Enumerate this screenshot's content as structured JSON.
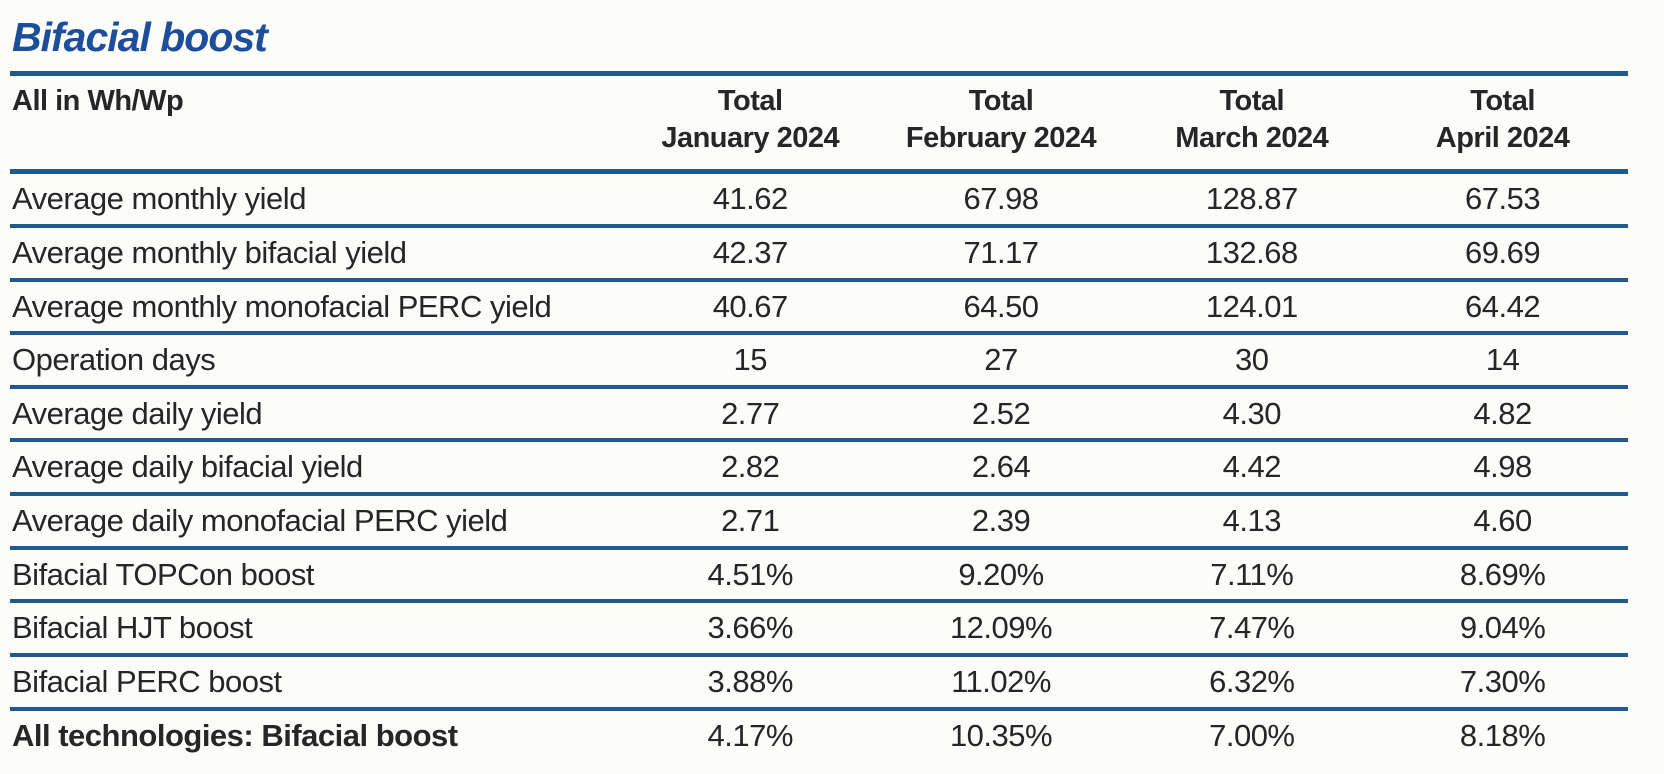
{
  "title": "Bifacial boost",
  "colors": {
    "title_blue": "#1d4e9c",
    "rule_blue": "#1e5b8c",
    "text": "#262626",
    "background": "#fcfcfa"
  },
  "chart_data": {
    "type": "table",
    "title": "Bifacial boost",
    "unit_note": "All in Wh/Wp",
    "column_headers": [
      {
        "top": "Total",
        "bottom": "January 2024"
      },
      {
        "top": "Total",
        "bottom": "February 2024"
      },
      {
        "top": "Total",
        "bottom": "March 2024"
      },
      {
        "top": "Total",
        "bottom": "April 2024"
      }
    ],
    "rows": [
      {
        "label": "Average monthly yield",
        "values": [
          "41.62",
          "67.98",
          "128.87",
          "67.53"
        ]
      },
      {
        "label": "Average monthly bifacial yield",
        "values": [
          "42.37",
          "71.17",
          "132.68",
          "69.69"
        ]
      },
      {
        "label": "Average monthly monofacial PERC yield",
        "values": [
          "40.67",
          "64.50",
          "124.01",
          "64.42"
        ]
      },
      {
        "label": "Operation days",
        "values": [
          "15",
          "27",
          "30",
          "14"
        ]
      },
      {
        "label": "Average daily yield",
        "values": [
          "2.77",
          "2.52",
          "4.30",
          "4.82"
        ]
      },
      {
        "label": "Average daily bifacial yield",
        "values": [
          "2.82",
          "2.64",
          "4.42",
          "4.98"
        ]
      },
      {
        "label": "Average daily monofacial PERC yield",
        "values": [
          "2.71",
          "2.39",
          "4.13",
          "4.60"
        ]
      },
      {
        "label": "Bifacial TOPCon boost",
        "values": [
          "4.51%",
          "9.20%",
          "7.11%",
          "8.69%"
        ]
      },
      {
        "label": "Bifacial HJT boost",
        "values": [
          "3.66%",
          "12.09%",
          "7.47%",
          "9.04%"
        ]
      },
      {
        "label": "Bifacial PERC boost",
        "values": [
          "3.88%",
          "11.02%",
          "6.32%",
          "7.30%"
        ]
      },
      {
        "label": "All technologies: Bifacial boost",
        "values": [
          "4.17%",
          "10.35%",
          "7.00%",
          "8.18%"
        ],
        "emphasis": true
      }
    ]
  }
}
